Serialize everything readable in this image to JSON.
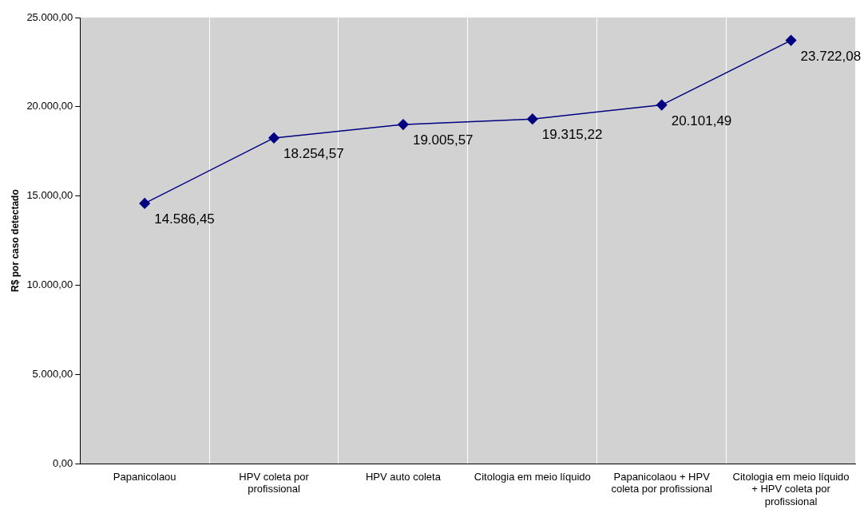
{
  "chart_data": {
    "type": "line",
    "ylabel": "R$ por caso detectado",
    "categories": [
      "Papanicolaou",
      "HPV coleta por profissional",
      "HPV auto coleta",
      "Citologia em meio líquido",
      "Papanicolaou + HPV coleta por profissional",
      "Citologia em meio líquido + HPV coleta por profissional"
    ],
    "series": [
      {
        "color": "#000080",
        "values": [
          14586.45,
          18254.57,
          19005.57,
          19315.22,
          20101.49,
          23722.08
        ],
        "value_labels": [
          "14.586,45",
          "18.254,57",
          "19.005,57",
          "19.315,22",
          "20.101,49",
          "23.722,08"
        ]
      }
    ],
    "ylim": [
      0,
      25000
    ],
    "yticks": [
      {
        "value": 0,
        "label": "0,00"
      },
      {
        "value": 5000,
        "label": "5.000,00"
      },
      {
        "value": 10000,
        "label": "10.000,00"
      },
      {
        "value": 15000,
        "label": "15.000,00"
      },
      {
        "value": 20000,
        "label": "20.000,00"
      },
      {
        "value": 25000,
        "label": "25.000,00"
      }
    ],
    "grid": "x",
    "legend": false,
    "marker": "diamond",
    "line_style": "solid"
  }
}
